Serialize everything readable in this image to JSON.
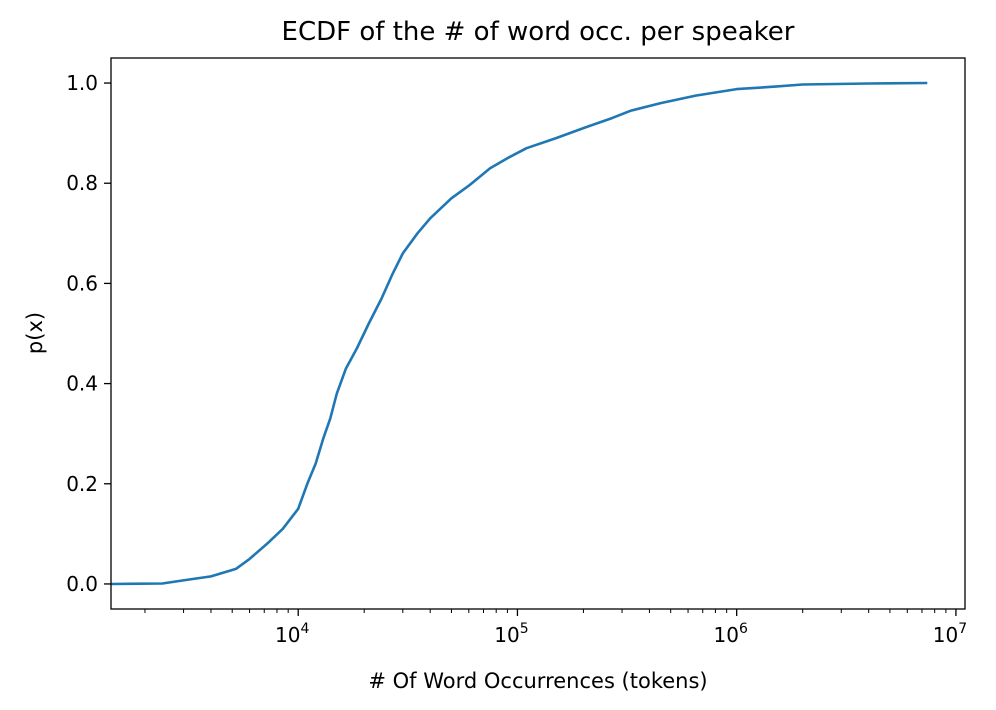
{
  "chart_data": {
    "type": "line",
    "title": "ECDF of the # of word occ. per speaker",
    "xlabel": "# Of Word Occurrences (tokens)",
    "ylabel": "p(x)",
    "x_scale": "log",
    "xlim": [
      1400,
      11000000
    ],
    "ylim": [
      -0.05,
      1.05
    ],
    "x_ticks": [
      {
        "value": 10000,
        "base": "10",
        "exp": "4"
      },
      {
        "value": 100000,
        "base": "10",
        "exp": "5"
      },
      {
        "value": 1000000,
        "base": "10",
        "exp": "6"
      },
      {
        "value": 10000000,
        "base": "10",
        "exp": "7"
      }
    ],
    "y_ticks": [
      {
        "value": 0.0,
        "label": "0.0"
      },
      {
        "value": 0.2,
        "label": "0.2"
      },
      {
        "value": 0.4,
        "label": "0.4"
      },
      {
        "value": 0.6,
        "label": "0.6"
      },
      {
        "value": 0.8,
        "label": "0.8"
      },
      {
        "value": 1.0,
        "label": "1.0"
      }
    ],
    "grid": false,
    "series": [
      {
        "color": "#1f77b4",
        "points": [
          [
            1400,
            0.0
          ],
          [
            2400,
            0.001
          ],
          [
            3100,
            0.008
          ],
          [
            4000,
            0.015
          ],
          [
            5200,
            0.03
          ],
          [
            6000,
            0.05
          ],
          [
            7200,
            0.08
          ],
          [
            8500,
            0.11
          ],
          [
            10000,
            0.15
          ],
          [
            11000,
            0.2
          ],
          [
            12000,
            0.24
          ],
          [
            13000,
            0.29
          ],
          [
            14000,
            0.33
          ],
          [
            15000,
            0.38
          ],
          [
            16500,
            0.43
          ],
          [
            18500,
            0.47
          ],
          [
            21000,
            0.52
          ],
          [
            24000,
            0.57
          ],
          [
            27000,
            0.62
          ],
          [
            30000,
            0.66
          ],
          [
            35000,
            0.7
          ],
          [
            40000,
            0.73
          ],
          [
            50000,
            0.77
          ],
          [
            60000,
            0.795
          ],
          [
            75000,
            0.83
          ],
          [
            90000,
            0.85
          ],
          [
            110000,
            0.87
          ],
          [
            150000,
            0.89
          ],
          [
            200000,
            0.91
          ],
          [
            270000,
            0.93
          ],
          [
            330000,
            0.945
          ],
          [
            450000,
            0.96
          ],
          [
            650000,
            0.975
          ],
          [
            1000000,
            0.988
          ],
          [
            1500000,
            0.993
          ],
          [
            2000000,
            0.997
          ],
          [
            4000000,
            0.999
          ],
          [
            7400000,
            1.0
          ]
        ]
      }
    ]
  }
}
